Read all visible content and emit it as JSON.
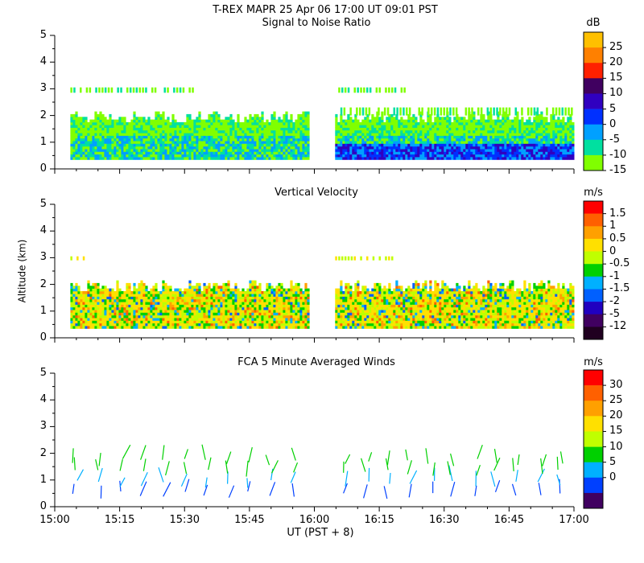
{
  "header": {
    "title_line": "T-REX   MAPR 25 Apr 06   17:00 UT   09:01   PST"
  },
  "xaxis": {
    "label": "UT  (PST + 8)",
    "ticks": [
      "15:00",
      "15:15",
      "15:30",
      "15:45",
      "16:00",
      "16:15",
      "16:30",
      "16:45",
      "17:00"
    ]
  },
  "shared": {
    "ylabel": "Altitude (km)"
  },
  "colors": {
    "bg": "#ffffff",
    "axis": "#000000"
  },
  "chart_data": [
    {
      "type": "heatmap",
      "title": "Signal to Noise Ratio",
      "xlabel": "UT  (PST + 8)",
      "ylabel": "Altitude (km)",
      "xlim_hours": [
        15.0,
        17.0
      ],
      "ylim": [
        0,
        5
      ],
      "yticks": [
        "0",
        "1",
        "2",
        "3",
        "4",
        "5"
      ],
      "colorbar": {
        "unit": "dB",
        "labels": [
          "25",
          "20",
          "15",
          "10",
          "5",
          "0",
          "-5",
          "-10",
          "-15"
        ],
        "colors": [
          "#ffc000",
          "#ff8000",
          "#ff2000",
          "#400060",
          "#3000c0",
          "#0030ff",
          "#00a0ff",
          "#00e0a0",
          "#80ff00"
        ]
      },
      "data_gap_hours": [
        15.98,
        16.08
      ]
    },
    {
      "type": "heatmap",
      "title": "Vertical Velocity",
      "xlabel": "UT  (PST + 8)",
      "ylabel": "Altitude (km)",
      "xlim_hours": [
        15.0,
        17.0
      ],
      "ylim": [
        0,
        5
      ],
      "yticks": [
        "0",
        "1",
        "2",
        "3",
        "4",
        "5"
      ],
      "colorbar": {
        "unit": "m/s",
        "labels": [
          "1.5",
          "1",
          "0.5",
          "0",
          "-0.5",
          "-1",
          "-1.5",
          "-2",
          "-5",
          "-12"
        ],
        "colors": [
          "#ff0000",
          "#ff6000",
          "#ffa000",
          "#ffe000",
          "#c0ff00",
          "#00d000",
          "#00b0ff",
          "#0060ff",
          "#2000c0",
          "#400060",
          "#200020"
        ]
      },
      "data_gap_hours": [
        15.98,
        16.08
      ]
    },
    {
      "type": "scatter",
      "title": "FCA 5 Minute Averaged Winds",
      "xlabel": "UT  (PST + 8)",
      "ylabel": "Altitude (km)",
      "xlim_hours": [
        15.0,
        17.0
      ],
      "ylim": [
        0,
        5
      ],
      "yticks": [
        "0",
        "1",
        "2",
        "3",
        "4",
        "5"
      ],
      "colorbar": {
        "unit": "m/s",
        "labels": [
          "30",
          "25",
          "20",
          "15",
          "10",
          "5",
          "0"
        ],
        "colors": [
          "#ff0000",
          "#ff6000",
          "#ffa000",
          "#ffe000",
          "#c0ff00",
          "#00d000",
          "#00b0ff",
          "#0040ff",
          "#400060"
        ]
      },
      "wind_profile_times_hours": [
        15.08,
        15.17,
        15.25,
        15.33,
        15.42,
        15.5,
        15.58,
        15.67,
        15.75,
        15.83,
        15.92,
        16.12,
        16.2,
        16.28,
        16.37,
        16.45,
        16.53,
        16.62,
        16.7,
        16.78,
        16.87,
        16.95
      ],
      "wind_profile_heights_km": [
        0.3,
        0.7,
        1.1,
        1.5
      ]
    }
  ]
}
